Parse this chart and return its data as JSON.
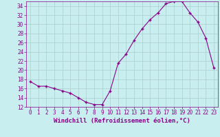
{
  "x": [
    0,
    1,
    2,
    3,
    4,
    5,
    6,
    7,
    8,
    9,
    10,
    11,
    12,
    13,
    14,
    15,
    16,
    17,
    18,
    19,
    20,
    21,
    22,
    23
  ],
  "y": [
    17.5,
    16.5,
    16.5,
    16.0,
    15.5,
    15.0,
    14.0,
    13.0,
    12.5,
    12.5,
    15.5,
    21.5,
    23.5,
    26.5,
    29.0,
    31.0,
    32.5,
    34.5,
    35.0,
    35.0,
    32.5,
    30.5,
    27.0,
    20.5
  ],
  "line_color": "#880088",
  "marker": "+",
  "marker_size": 3,
  "bg_color": "#c8eef0",
  "grid_color": "#aacccc",
  "xlabel": "Windchill (Refroidissement éolien,°C)",
  "xlabel_color": "#880088",
  "tick_color": "#880088",
  "ylim": [
    12,
    35
  ],
  "xlim": [
    -0.5,
    23.5
  ],
  "yticks": [
    12,
    14,
    16,
    18,
    20,
    22,
    24,
    26,
    28,
    30,
    32,
    34
  ],
  "xticks": [
    0,
    1,
    2,
    3,
    4,
    5,
    6,
    7,
    8,
    9,
    10,
    11,
    12,
    13,
    14,
    15,
    16,
    17,
    18,
    19,
    20,
    21,
    22,
    23
  ],
  "font_size": 5.5,
  "xlabel_font_size": 6.5,
  "marker_color": "#880088",
  "linewidth": 0.8
}
